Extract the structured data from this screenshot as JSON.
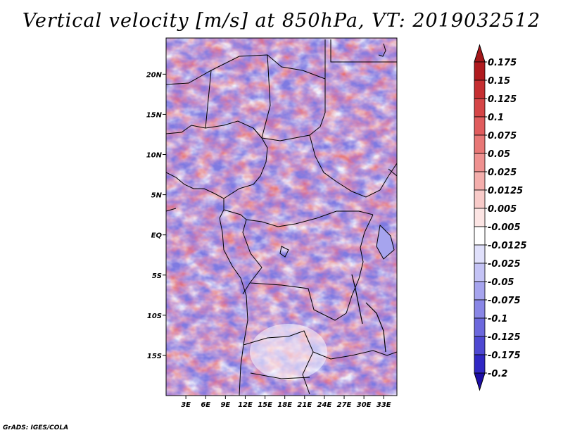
{
  "title": "Vertical velocity [m/s] at 850hPa, VT: 2019032512",
  "credit": "GrADS: IGES/COLA",
  "map": {
    "field": "vertical velocity 850hPa",
    "lat_labels": [
      "20N",
      "15N",
      "10N",
      "5N",
      "EQ",
      "5S",
      "10S",
      "15S"
    ],
    "lon_labels": [
      "3E",
      "6E",
      "9E",
      "12E",
      "15E",
      "18E",
      "21E",
      "24E",
      "27E",
      "30E",
      "33E"
    ],
    "lat_range": [
      -20,
      24.5
    ],
    "lon_range": [
      0,
      35
    ]
  },
  "colorbar": {
    "labels": [
      "0.175",
      "0.15",
      "0.125",
      "0.1",
      "0.075",
      "0.05",
      "0.025",
      "0.0125",
      "0.005",
      "-0.005",
      "-0.0125",
      "-0.025",
      "-0.05",
      "-0.075",
      "-0.1",
      "-0.125",
      "-0.175",
      "-0.2"
    ],
    "colors": [
      "#b01a1e",
      "#c52e31",
      "#d54547",
      "#e05c5d",
      "#e87776",
      "#ef9190",
      "#f4aeac",
      "#f8cbc9",
      "#fce5e4",
      "#ffffff",
      "#e0e0fb",
      "#c4c3f5",
      "#a6a4ee",
      "#8986e6",
      "#6c68dd",
      "#4e48d2",
      "#3027c4",
      "#1a0fb0"
    ],
    "top_color": "#a4171a",
    "bottom_color": "#1d0ea6"
  }
}
